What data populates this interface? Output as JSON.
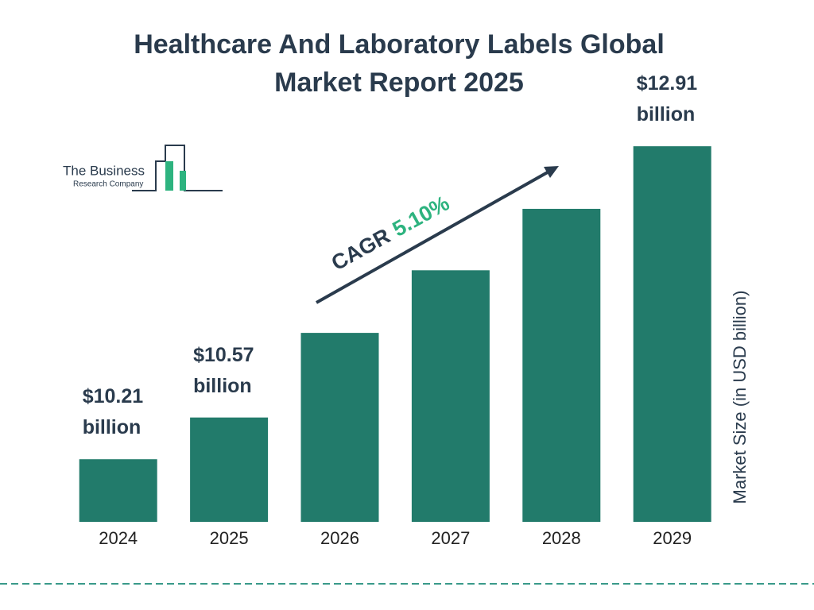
{
  "chart_data": {
    "type": "bar",
    "title": "Healthcare And Laboratory Labels Global Market Report 2025",
    "categories": [
      "2024",
      "2025",
      "2026",
      "2027",
      "2028",
      "2029"
    ],
    "values": [
      10.21,
      10.57,
      11.3,
      11.84,
      12.37,
      12.91
    ],
    "value_labels": [
      "$10.21 billion",
      "$10.57 billion",
      null,
      null,
      null,
      "$12.91 billion"
    ],
    "color": "#227b6b",
    "ylim": [
      9.67,
      13.0
    ],
    "y_label": "Market Size (in USD billion)",
    "annotation": {
      "label": "CAGR",
      "value": "5.10%"
    },
    "logo": {
      "line1": "The Business",
      "line2": "Research Company"
    }
  }
}
